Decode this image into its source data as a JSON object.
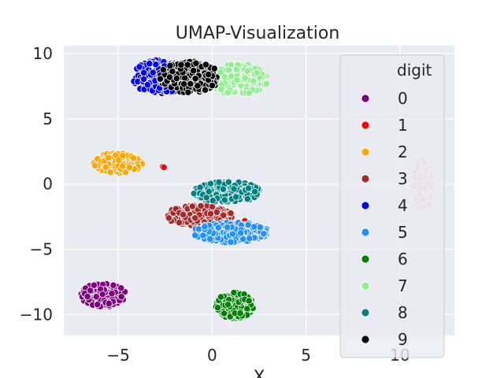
{
  "chart_data": {
    "type": "scatter",
    "title": "UMAP-Visualization",
    "xlabel": "X",
    "ylabel": "",
    "xlim": [
      -7.9,
      12.9
    ],
    "ylim": [
      -11.6,
      10.6
    ],
    "xticks": [
      -5,
      0,
      5,
      10
    ],
    "yticks": [
      10,
      5,
      0,
      -5,
      -10
    ],
    "xtick_labels": [
      "−5",
      "0",
      "5",
      "10"
    ],
    "ytick_labels": [
      "10",
      "5",
      "0",
      "−5",
      "−10"
    ],
    "grid": true,
    "background": "#eaeaf2",
    "legend": {
      "title": "digit",
      "placement": "right"
    },
    "series": [
      {
        "name": "0",
        "color": "#800080",
        "clusters": [
          {
            "cx": -5.8,
            "cy": -8.5,
            "rx": 1.2,
            "ry": 0.9,
            "n": 160
          }
        ]
      },
      {
        "name": "1",
        "color": "#ff0000",
        "clusters": [
          {
            "cx": 1.5,
            "cy": -2.8,
            "rx": 0.3,
            "ry": 0.3,
            "n": 3
          },
          {
            "cx": -2.6,
            "cy": 1.4,
            "rx": 0.2,
            "ry": 0.2,
            "n": 2
          }
        ]
      },
      {
        "name": "2",
        "color": "#ffa500",
        "clusters": [
          {
            "cx": -5.0,
            "cy": 1.6,
            "rx": 1.3,
            "ry": 0.8,
            "n": 170
          }
        ]
      },
      {
        "name": "3",
        "color": "#a52a2a",
        "clusters": [
          {
            "cx": -0.7,
            "cy": -2.4,
            "rx": 1.8,
            "ry": 0.8,
            "n": 200
          }
        ]
      },
      {
        "name": "4",
        "color": "#0000ff",
        "clusters": [
          {
            "cx": -2.8,
            "cy": 8.2,
            "rx": 1.5,
            "ry": 1.3,
            "n": 240
          }
        ]
      },
      {
        "name": "5",
        "color": "#1e90ff",
        "clusters": [
          {
            "cx": 1.0,
            "cy": -3.7,
            "rx": 2.0,
            "ry": 0.8,
            "n": 260
          }
        ]
      },
      {
        "name": "6",
        "color": "#008000",
        "clusters": [
          {
            "cx": 1.2,
            "cy": -9.3,
            "rx": 1.0,
            "ry": 1.0,
            "n": 170
          }
        ]
      },
      {
        "name": "7",
        "color": "#90ee90",
        "clusters": [
          {
            "cx": 1.4,
            "cy": 8.0,
            "rx": 1.6,
            "ry": 1.2,
            "n": 240
          }
        ]
      },
      {
        "name": "8",
        "color": "#008080",
        "clusters": [
          {
            "cx": 0.8,
            "cy": -0.6,
            "rx": 1.8,
            "ry": 0.8,
            "n": 220
          }
        ]
      },
      {
        "name": "9",
        "color": "#000000",
        "clusters": [
          {
            "cx": -1.2,
            "cy": 8.2,
            "rx": 1.6,
            "ry": 1.2,
            "n": 200
          }
        ]
      },
      {
        "name": "",
        "color": "#f4b8b8",
        "clusters": [
          {
            "cx": 11.2,
            "cy": -0.1,
            "rx": 0.55,
            "ry": 2.0,
            "n": 130
          }
        ]
      }
    ]
  }
}
